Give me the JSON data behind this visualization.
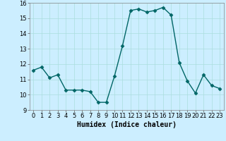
{
  "x": [
    0,
    1,
    2,
    3,
    4,
    5,
    6,
    7,
    8,
    9,
    10,
    11,
    12,
    13,
    14,
    15,
    16,
    17,
    18,
    19,
    20,
    21,
    22,
    23
  ],
  "y": [
    11.6,
    11.8,
    11.1,
    11.3,
    10.3,
    10.3,
    10.3,
    10.2,
    9.5,
    9.5,
    11.2,
    13.2,
    15.5,
    15.6,
    15.4,
    15.5,
    15.7,
    15.2,
    12.1,
    10.9,
    10.1,
    11.3,
    10.6,
    10.4
  ],
  "line_color": "#006666",
  "marker_color": "#006666",
  "bg_color": "#cceeff",
  "grid_color": "#aadddd",
  "xlabel": "Humidex (Indice chaleur)",
  "xlabel_fontsize": 7,
  "xlabel_weight": "bold",
  "ylim": [
    9,
    16
  ],
  "xlim": [
    -0.5,
    23.5
  ],
  "yticks": [
    9,
    10,
    11,
    12,
    13,
    14,
    15,
    16
  ],
  "xticks": [
    0,
    1,
    2,
    3,
    4,
    5,
    6,
    7,
    8,
    9,
    10,
    11,
    12,
    13,
    14,
    15,
    16,
    17,
    18,
    19,
    20,
    21,
    22,
    23
  ],
  "tick_fontsize": 6,
  "line_width": 1.0,
  "marker_size": 2.5
}
